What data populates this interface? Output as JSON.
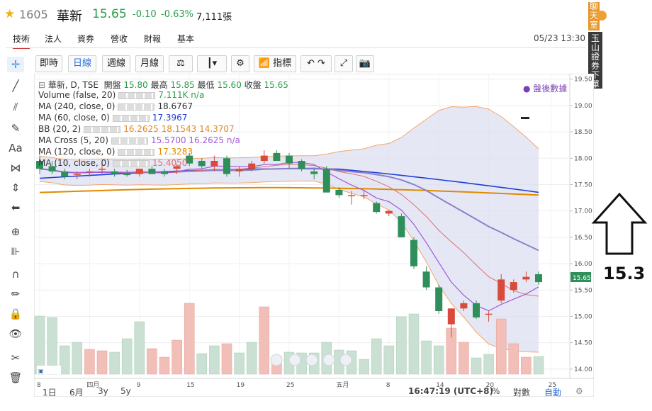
{
  "header": {
    "code": "1605",
    "name": "華新",
    "price": "15.65",
    "change": "-0.10",
    "change_pct": "-0.63%",
    "volume": "7,111張",
    "color_down": "#2a9d4b"
  },
  "tabs": [
    "技術",
    "法人",
    "資券",
    "營收",
    "財報",
    "基本"
  ],
  "active_tab": "技術",
  "datetime": "05/23 13:30",
  "side_tags": {
    "chat": "聊天室",
    "broker": "玉山證券下單"
  },
  "toolbar": {
    "intraday": "即時",
    "daily": "日線",
    "weekly": "週線",
    "monthly": "月線",
    "indicators": "指標"
  },
  "legend": {
    "main": "華新, D, TSE",
    "open_label": "開盤",
    "open": "15.80",
    "high_label": "最高",
    "high": "15.85",
    "low_label": "最低",
    "low": "15.60",
    "close_label": "收盤",
    "close": "15.65",
    "rows": [
      {
        "label": "Volume (false, 20)",
        "value": "7.111K n/a",
        "color": "#2a9d4b"
      },
      {
        "label": "MA (240, close, 0)",
        "value": "18.6767",
        "color": "#333333"
      },
      {
        "label": "MA (60, close, 0)",
        "value": "17.3967",
        "color": "#1f3fd6"
      },
      {
        "label": "BB (20, 2)",
        "value": "16.2625 18.1543 14.3707",
        "color": "#e08a2a"
      },
      {
        "label": "MA Cross (5, 20)",
        "value": "15.5700 16.2625 n/a",
        "color": "#a05ad8"
      },
      {
        "label": "MA (120, close, 0)",
        "value": "17.3283",
        "color": "#e08a00"
      },
      {
        "label": "MA (10, close, 0)",
        "value": "15.4050",
        "color": "#e07070"
      }
    ]
  },
  "after_hours": "● 盤後數據",
  "y_axis": [
    "19.50",
    "19.00",
    "18.50",
    "18.00",
    "17.50",
    "17.00",
    "16.50",
    "16.00",
    "15.50",
    "15.00",
    "14.50",
    "14.00"
  ],
  "last_price_tag": "15.65",
  "x_axis": [
    "8",
    "四月",
    "9",
    "15",
    "19",
    "25",
    "五月",
    "8",
    "14",
    "20",
    "25"
  ],
  "range_buttons": [
    "1日",
    "6月",
    "3y",
    "5y"
  ],
  "clock": "16:47:19 (UTC+8)",
  "scale_options": [
    "%",
    "對數",
    "自動"
  ],
  "annotation": "15.3",
  "chart_data": {
    "type": "candlestick",
    "ylim": [
      13.85,
      19.55
    ],
    "candles": [
      {
        "o": 17.95,
        "h": 18.05,
        "l": 17.7,
        "c": 17.8
      },
      {
        "o": 17.85,
        "h": 17.95,
        "l": 17.7,
        "c": 17.75
      },
      {
        "o": 17.75,
        "h": 17.8,
        "l": 17.6,
        "c": 17.65
      },
      {
        "o": 17.7,
        "h": 17.75,
        "l": 17.6,
        "c": 17.7
      },
      {
        "o": 17.75,
        "h": 17.8,
        "l": 17.65,
        "c": 17.75
      },
      {
        "o": 17.8,
        "h": 17.9,
        "l": 17.7,
        "c": 17.8
      },
      {
        "o": 17.75,
        "h": 17.8,
        "l": 17.65,
        "c": 17.7
      },
      {
        "o": 17.72,
        "h": 17.78,
        "l": 17.65,
        "c": 17.68
      },
      {
        "o": 17.7,
        "h": 17.8,
        "l": 17.65,
        "c": 17.8
      },
      {
        "o": 17.8,
        "h": 17.85,
        "l": 17.7,
        "c": 17.7
      },
      {
        "o": 17.75,
        "h": 17.8,
        "l": 17.65,
        "c": 17.7
      },
      {
        "o": 17.8,
        "h": 17.9,
        "l": 17.7,
        "c": 17.85
      },
      {
        "o": 18.05,
        "h": 18.1,
        "l": 17.85,
        "c": 17.9
      },
      {
        "o": 17.95,
        "h": 18.0,
        "l": 17.8,
        "c": 17.85
      },
      {
        "o": 17.85,
        "h": 18.05,
        "l": 17.75,
        "c": 17.95
      },
      {
        "o": 18.0,
        "h": 18.05,
        "l": 17.65,
        "c": 17.7
      },
      {
        "o": 17.75,
        "h": 17.85,
        "l": 17.65,
        "c": 17.8
      },
      {
        "o": 17.8,
        "h": 17.95,
        "l": 17.75,
        "c": 17.9
      },
      {
        "o": 17.95,
        "h": 18.15,
        "l": 17.9,
        "c": 18.05
      },
      {
        "o": 18.1,
        "h": 18.15,
        "l": 17.95,
        "c": 17.95
      },
      {
        "o": 18.05,
        "h": 18.1,
        "l": 17.8,
        "c": 17.9
      },
      {
        "o": 17.95,
        "h": 17.98,
        "l": 17.75,
        "c": 17.8
      },
      {
        "o": 17.75,
        "h": 17.8,
        "l": 17.6,
        "c": 17.7
      },
      {
        "o": 17.8,
        "h": 17.85,
        "l": 17.35,
        "c": 17.35
      },
      {
        "o": 17.4,
        "h": 17.45,
        "l": 17.25,
        "c": 17.3
      },
      {
        "o": 17.3,
        "h": 17.38,
        "l": 17.12,
        "c": 17.3
      },
      {
        "o": 17.28,
        "h": 17.4,
        "l": 17.22,
        "c": 17.3
      },
      {
        "o": 17.15,
        "h": 17.18,
        "l": 16.95,
        "c": 16.98
      },
      {
        "o": 16.95,
        "h": 17.02,
        "l": 16.9,
        "c": 17.0
      },
      {
        "o": 16.9,
        "h": 16.95,
        "l": 16.5,
        "c": 16.5
      },
      {
        "o": 16.45,
        "h": 16.5,
        "l": 15.9,
        "c": 15.95
      },
      {
        "o": 15.85,
        "h": 15.95,
        "l": 15.5,
        "c": 15.55
      },
      {
        "o": 15.55,
        "h": 15.6,
        "l": 15.05,
        "c": 15.1
      },
      {
        "o": 14.85,
        "h": 15.15,
        "l": 14.6,
        "c": 15.15
      },
      {
        "o": 15.15,
        "h": 15.3,
        "l": 15.1,
        "c": 15.25
      },
      {
        "o": 15.25,
        "h": 15.3,
        "l": 14.95,
        "c": 14.98
      },
      {
        "o": 15.05,
        "h": 15.1,
        "l": 14.9,
        "c": 15.05
      },
      {
        "o": 15.3,
        "h": 15.8,
        "l": 15.25,
        "c": 15.7
      },
      {
        "o": 15.5,
        "h": 15.7,
        "l": 15.45,
        "c": 15.65
      },
      {
        "o": 15.7,
        "h": 15.85,
        "l": 15.65,
        "c": 15.75
      },
      {
        "o": 15.8,
        "h": 15.85,
        "l": 15.6,
        "c": 15.65
      }
    ],
    "volume": [
      {
        "v": 0.82,
        "up": false
      },
      {
        "v": 0.8,
        "up": false
      },
      {
        "v": 0.4,
        "up": false
      },
      {
        "v": 0.45,
        "up": false
      },
      {
        "v": 0.35,
        "up": true
      },
      {
        "v": 0.33,
        "up": true
      },
      {
        "v": 0.31,
        "up": false
      },
      {
        "v": 0.5,
        "up": false
      },
      {
        "v": 0.74,
        "up": false
      },
      {
        "v": 0.36,
        "up": true
      },
      {
        "v": 0.24,
        "up": true
      },
      {
        "v": 0.48,
        "up": true
      },
      {
        "v": 1.0,
        "up": true
      },
      {
        "v": 0.29,
        "up": false
      },
      {
        "v": 0.4,
        "up": false
      },
      {
        "v": 0.43,
        "up": true
      },
      {
        "v": 0.3,
        "up": false
      },
      {
        "v": 0.45,
        "up": false
      },
      {
        "v": 0.95,
        "up": true
      },
      {
        "v": 0.25,
        "up": true
      },
      {
        "v": 0.31,
        "up": false
      },
      {
        "v": 0.3,
        "up": false
      },
      {
        "v": 0.3,
        "up": false
      },
      {
        "v": 0.45,
        "up": false
      },
      {
        "v": 0.34,
        "up": false
      },
      {
        "v": 0.33,
        "up": false
      },
      {
        "v": 0.21,
        "up": false
      },
      {
        "v": 0.5,
        "up": false
      },
      {
        "v": 0.4,
        "up": false
      },
      {
        "v": 0.81,
        "up": false
      },
      {
        "v": 0.85,
        "up": false
      },
      {
        "v": 0.47,
        "up": false
      },
      {
        "v": 0.4,
        "up": false
      },
      {
        "v": 0.65,
        "up": true
      },
      {
        "v": 0.45,
        "up": true
      },
      {
        "v": 0.23,
        "up": false
      },
      {
        "v": 0.28,
        "up": false
      },
      {
        "v": 0.78,
        "up": true
      },
      {
        "v": 0.43,
        "up": true
      },
      {
        "v": 0.24,
        "up": true
      },
      {
        "v": 0.25,
        "up": false
      }
    ],
    "colors": {
      "up": "#d94a3a",
      "down": "#2f8f5a",
      "ma60": "#1f3fd6",
      "ma120": "#e08a00",
      "ma20": "#8b82c8",
      "ma5": "#a05ad8",
      "ma10": "#e07070",
      "bb": "#f3a66a",
      "bbfill": "#d9daf0"
    }
  }
}
